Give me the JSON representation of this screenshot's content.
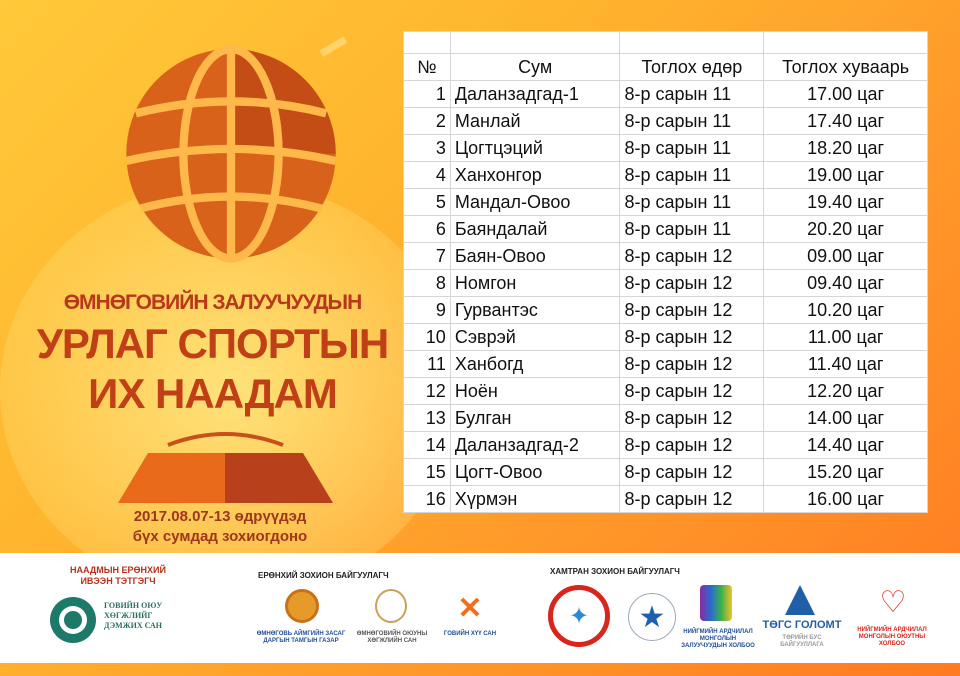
{
  "poster": {
    "title_line1": "ӨМНӨГОВИЙН ЗАЛУУЧУУДЫН",
    "title_line2": "УРЛАГ СПОРТЫН",
    "title_line3": "ИХ НААДАМ",
    "date_line1": "2017.08.07-13 өдрүүдэд",
    "date_line2": "бүх сумдад зохиогдоно",
    "colors": {
      "title": "#c13f16",
      "globe": "#d9621b",
      "background": "#ffb52e"
    }
  },
  "schedule": {
    "headers": [
      "№",
      "Сум",
      "Тоглох өдөр",
      "Тоглох хуваарь"
    ],
    "rows": [
      [
        "1",
        "Даланзадгад-1",
        "8-р сарын 11",
        "17.00 цаг"
      ],
      [
        "2",
        "Манлай",
        "8-р сарын 11",
        "17.40 цаг"
      ],
      [
        "3",
        "Цогтцэций",
        "8-р сарын 11",
        "18.20 цаг"
      ],
      [
        "4",
        "Ханхонгор",
        "8-р сарын 11",
        "19.00 цаг"
      ],
      [
        "5",
        "Мандал-Овоо",
        "8-р сарын 11",
        "19.40 цаг"
      ],
      [
        "6",
        "Баяндалай",
        "8-р сарын 11",
        "20.20 цаг"
      ],
      [
        "7",
        "Баян-Овоо",
        "8-р сарын 12",
        "09.00 цаг"
      ],
      [
        "8",
        "Номгон",
        "8-р сарын 12",
        "09.40 цаг"
      ],
      [
        "9",
        "Гурвантэс",
        "8-р сарын 12",
        "10.20 цаг"
      ],
      [
        "10",
        "Сэврэй",
        "8-р сарын 12",
        "11.00 цаг"
      ],
      [
        "11",
        "Ханбогд",
        "8-р сарын 12",
        "11.40 цаг"
      ],
      [
        "12",
        "Ноён",
        "8-р сарын 12",
        "12.20 цаг"
      ],
      [
        "13",
        "Булган",
        "8-р сарын 12",
        "14.00 цаг"
      ],
      [
        "14",
        "Даланзадгад-2",
        "8-р сарын 12",
        "14.40 цаг"
      ],
      [
        "15",
        "Цогт-Овоо",
        "8-р сарын 12",
        "15.20 цаг"
      ],
      [
        "16",
        "Хүрмэн",
        "8-р сарын 12",
        "16.00 цаг"
      ]
    ]
  },
  "sponsors": {
    "general_sponsor_heading": "НААДМЫН ЕРӨНХИЙ ИВЭЭН ТЭТГЭГЧ",
    "general_sponsor": "ГОВИЙН ОЮУ ХӨГЖЛИЙГ ДЭМЖИХ САН",
    "general_organizer_heading": "ЕРӨНХИЙ ЗОХИОН БАЙГУУЛАГЧ",
    "organizers": [
      "ӨМНӨГОВЬ АЙМГИЙН ЗАСАГ ДАРГЫН ТАМГЫН ГАЗАР",
      "ӨМНӨГОВИЙН ОЮУНЫ ХӨГЖЛИЙН САН",
      "ГОВИЙН ХҮҮ САН"
    ],
    "co_organizer_heading": "ХАМТРАН ЗОХИОН БАЙГУУЛАГЧ",
    "co_organizers": [
      "",
      "",
      "НИЙГМИЙН АРДЧИЛАЛ МОНГОЛЫН ЗАЛУУЧУУДЫН ХОЛБОО",
      "ТӨГС ГОЛОМТ",
      "НИЙГМИЙН АРДЧИЛАЛ МОНГОЛЫН ОЮУТНЫ ХОЛБОО"
    ],
    "co_organizer_sub": "ТӨРИЙН БУС БАЙГУУЛЛАГА"
  }
}
